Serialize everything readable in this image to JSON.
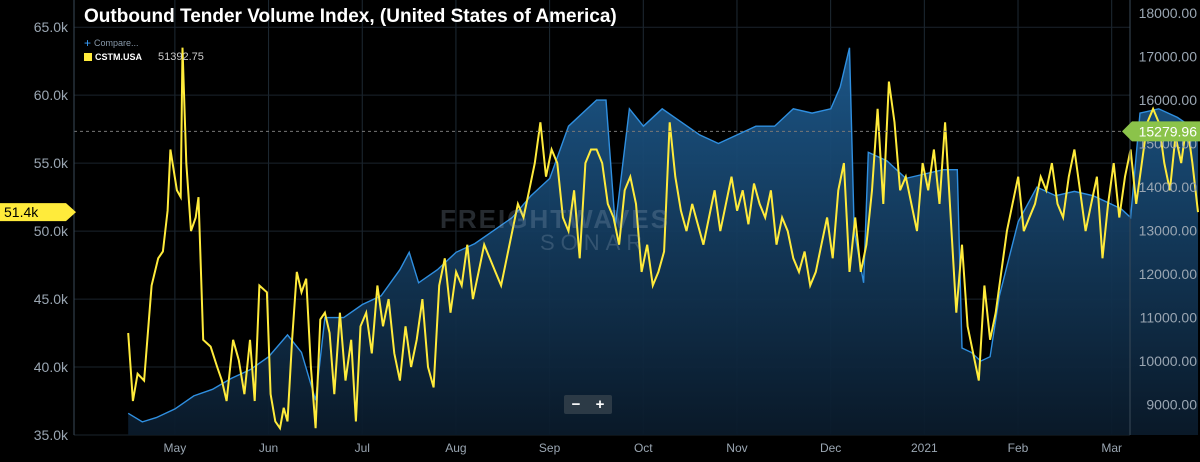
{
  "title": "Outbound Tender Volume Index, (United States of America)",
  "legend": {
    "compare_label": "Compare...",
    "series_label": "CSTM.USA",
    "series_value": "51392.75"
  },
  "watermark": {
    "line1": "FREIGHTWAVES",
    "line2": "SONAR"
  },
  "zoom": {
    "minus": "−",
    "plus": "+"
  },
  "colors": {
    "yellow": "#ffeb3b",
    "blue": "#2f8fe0",
    "badge_green": "#8bc34a"
  },
  "chart_data": {
    "type": "line",
    "x_ticks": [
      "May",
      "Jun",
      "Jul",
      "Aug",
      "Sep",
      "Oct",
      "Nov",
      "Dec",
      "2021",
      "Feb",
      "Mar"
    ],
    "left_axis": {
      "ylim": [
        35000,
        67000
      ],
      "ticks": [
        35000,
        40000,
        45000,
        50000,
        55000,
        60000,
        65000
      ],
      "tick_labels": [
        "35.0k",
        "40.0k",
        "45.0k",
        "50.0k",
        "55.0k",
        "60.0k",
        "65.0k"
      ]
    },
    "right_axis": {
      "ylim": [
        8300,
        18300
      ],
      "ticks": [
        9000,
        10000,
        11000,
        12000,
        13000,
        14000,
        15000,
        16000,
        17000,
        18000
      ],
      "tick_labels": [
        "9000.00",
        "10000.00",
        "11000.00",
        "12000.00",
        "13000.00",
        "14000.00",
        "15000.00",
        "16000.00",
        "17000.00",
        "18000.00"
      ]
    },
    "last_left_label": "51.4k",
    "last_right_label": "15279.96",
    "series": [
      {
        "name": "CSTM.USA",
        "axis": "left",
        "color": "#ffeb3b",
        "points": [
          [
            0.0,
            42.5
          ],
          [
            0.05,
            37.5
          ],
          [
            0.1,
            39.5
          ],
          [
            0.17,
            39
          ],
          [
            0.25,
            46
          ],
          [
            0.32,
            48
          ],
          [
            0.37,
            48.5
          ],
          [
            0.42,
            51.5
          ],
          [
            0.45,
            56
          ],
          [
            0.52,
            53
          ],
          [
            0.56,
            52.5
          ],
          [
            0.58,
            63.5
          ],
          [
            0.62,
            55
          ],
          [
            0.67,
            50
          ],
          [
            0.72,
            51
          ],
          [
            0.75,
            52.5
          ],
          [
            0.8,
            42
          ],
          [
            0.88,
            41.5
          ],
          [
            0.95,
            40
          ],
          [
            1.0,
            39
          ],
          [
            1.05,
            37.5
          ],
          [
            1.12,
            42
          ],
          [
            1.18,
            40.5
          ],
          [
            1.24,
            38
          ],
          [
            1.3,
            42
          ],
          [
            1.35,
            37.5
          ],
          [
            1.4,
            46
          ],
          [
            1.48,
            45.5
          ],
          [
            1.52,
            38
          ],
          [
            1.57,
            36
          ],
          [
            1.62,
            35.5
          ],
          [
            1.66,
            37
          ],
          [
            1.7,
            36
          ],
          [
            1.75,
            42
          ],
          [
            1.8,
            47
          ],
          [
            1.85,
            45.5
          ],
          [
            1.9,
            46.5
          ],
          [
            1.95,
            40
          ],
          [
            2.0,
            35.5
          ],
          [
            2.05,
            43.5
          ],
          [
            2.1,
            44
          ],
          [
            2.15,
            42.5
          ],
          [
            2.2,
            38
          ],
          [
            2.26,
            44
          ],
          [
            2.32,
            39
          ],
          [
            2.38,
            42
          ],
          [
            2.43,
            36
          ],
          [
            2.48,
            43
          ],
          [
            2.54,
            44
          ],
          [
            2.6,
            41
          ],
          [
            2.66,
            46
          ],
          [
            2.72,
            43
          ],
          [
            2.78,
            45
          ],
          [
            2.84,
            41
          ],
          [
            2.9,
            39
          ],
          [
            2.96,
            43
          ],
          [
            3.02,
            40
          ],
          [
            3.08,
            42
          ],
          [
            3.14,
            45
          ],
          [
            3.2,
            40
          ],
          [
            3.26,
            38.5
          ],
          [
            3.32,
            46
          ],
          [
            3.38,
            48
          ],
          [
            3.44,
            44
          ],
          [
            3.5,
            47
          ],
          [
            3.56,
            46
          ],
          [
            3.62,
            49
          ],
          [
            3.68,
            45
          ],
          [
            3.74,
            47
          ],
          [
            3.8,
            49
          ],
          [
            3.86,
            48
          ],
          [
            3.92,
            47
          ],
          [
            3.98,
            46
          ],
          [
            4.04,
            48
          ],
          [
            4.1,
            50
          ],
          [
            4.16,
            52
          ],
          [
            4.22,
            51
          ],
          [
            4.28,
            53
          ],
          [
            4.34,
            55
          ],
          [
            4.4,
            58
          ],
          [
            4.46,
            54
          ],
          [
            4.52,
            56
          ],
          [
            4.58,
            55
          ],
          [
            4.64,
            51
          ],
          [
            4.7,
            50
          ],
          [
            4.76,
            53
          ],
          [
            4.82,
            48
          ],
          [
            4.88,
            55
          ],
          [
            4.94,
            56
          ],
          [
            5.0,
            56
          ],
          [
            5.06,
            55
          ],
          [
            5.12,
            52
          ],
          [
            5.18,
            51
          ],
          [
            5.24,
            49
          ],
          [
            5.3,
            53
          ],
          [
            5.36,
            54
          ],
          [
            5.42,
            52
          ],
          [
            5.48,
            47
          ],
          [
            5.54,
            49
          ],
          [
            5.6,
            46
          ],
          [
            5.66,
            47
          ],
          [
            5.72,
            48.5
          ],
          [
            5.78,
            58
          ],
          [
            5.84,
            54
          ],
          [
            5.9,
            51.5
          ],
          [
            5.96,
            50
          ],
          [
            6.02,
            52
          ],
          [
            6.08,
            50.5
          ],
          [
            6.14,
            49
          ],
          [
            6.2,
            51
          ],
          [
            6.26,
            53
          ],
          [
            6.32,
            50
          ],
          [
            6.38,
            52
          ],
          [
            6.44,
            54
          ],
          [
            6.5,
            51.5
          ],
          [
            6.56,
            53
          ],
          [
            6.62,
            50.5
          ],
          [
            6.68,
            53.5
          ],
          [
            6.74,
            52
          ],
          [
            6.8,
            51
          ],
          [
            6.86,
            53
          ],
          [
            6.92,
            49
          ],
          [
            6.98,
            51
          ],
          [
            7.04,
            50
          ],
          [
            7.1,
            48
          ],
          [
            7.16,
            47
          ],
          [
            7.22,
            48.5
          ],
          [
            7.28,
            46
          ],
          [
            7.34,
            47
          ],
          [
            7.4,
            49
          ],
          [
            7.46,
            51
          ],
          [
            7.52,
            48
          ],
          [
            7.58,
            53
          ],
          [
            7.64,
            55
          ],
          [
            7.7,
            47
          ],
          [
            7.76,
            51
          ],
          [
            7.82,
            47
          ],
          [
            7.88,
            49
          ],
          [
            7.94,
            53
          ],
          [
            8.0,
            59
          ],
          [
            8.06,
            52
          ],
          [
            8.12,
            61
          ],
          [
            8.18,
            58
          ],
          [
            8.24,
            53
          ],
          [
            8.3,
            54
          ],
          [
            8.36,
            52
          ],
          [
            8.42,
            50
          ],
          [
            8.48,
            55
          ],
          [
            8.54,
            53
          ],
          [
            8.6,
            56
          ],
          [
            8.66,
            52
          ],
          [
            8.72,
            58
          ],
          [
            8.78,
            51
          ],
          [
            8.84,
            44
          ],
          [
            8.9,
            49
          ],
          [
            8.96,
            43
          ],
          [
            9.02,
            41
          ],
          [
            9.08,
            39
          ],
          [
            9.14,
            46
          ],
          [
            9.2,
            42
          ],
          [
            9.26,
            44
          ],
          [
            9.32,
            47
          ],
          [
            9.38,
            50
          ],
          [
            9.44,
            52
          ],
          [
            9.5,
            54
          ],
          [
            9.56,
            50
          ],
          [
            9.62,
            51
          ],
          [
            9.68,
            52
          ],
          [
            9.74,
            54
          ],
          [
            9.8,
            53
          ],
          [
            9.86,
            55
          ],
          [
            9.92,
            52
          ],
          [
            9.98,
            51
          ],
          [
            10.04,
            54
          ],
          [
            10.1,
            56
          ],
          [
            10.16,
            53
          ],
          [
            10.22,
            50
          ],
          [
            10.28,
            52
          ],
          [
            10.34,
            54
          ],
          [
            10.4,
            48
          ],
          [
            10.46,
            52
          ],
          [
            10.52,
            55
          ],
          [
            10.58,
            51
          ],
          [
            10.64,
            54
          ],
          [
            10.7,
            56
          ],
          [
            10.76,
            52
          ],
          [
            10.82,
            55
          ],
          [
            10.88,
            58
          ],
          [
            10.94,
            59
          ],
          [
            11.0,
            58
          ],
          [
            11.06,
            55
          ],
          [
            11.12,
            53
          ],
          [
            11.18,
            57
          ],
          [
            11.24,
            55
          ],
          [
            11.3,
            58
          ],
          [
            11.36,
            55
          ],
          [
            11.42,
            51.4
          ]
        ]
      },
      {
        "name": "Compare",
        "axis": "right",
        "color": "#2f8fe0",
        "points": [
          [
            0.0,
            8800
          ],
          [
            0.15,
            8600
          ],
          [
            0.3,
            8700
          ],
          [
            0.5,
            8900
          ],
          [
            0.7,
            9200
          ],
          [
            0.9,
            9350
          ],
          [
            1.1,
            9600
          ],
          [
            1.3,
            9800
          ],
          [
            1.5,
            10100
          ],
          [
            1.7,
            10600
          ],
          [
            1.85,
            10200
          ],
          [
            2.0,
            9100
          ],
          [
            2.1,
            11000
          ],
          [
            2.3,
            11000
          ],
          [
            2.5,
            11300
          ],
          [
            2.7,
            11500
          ],
          [
            2.9,
            12100
          ],
          [
            3.0,
            12500
          ],
          [
            3.1,
            11800
          ],
          [
            3.3,
            12100
          ],
          [
            3.5,
            12500
          ],
          [
            3.7,
            12700
          ],
          [
            3.9,
            13000
          ],
          [
            4.1,
            13300
          ],
          [
            4.3,
            13800
          ],
          [
            4.5,
            14200
          ],
          [
            4.7,
            15400
          ],
          [
            4.9,
            15800
          ],
          [
            5.0,
            16000
          ],
          [
            5.1,
            16000
          ],
          [
            5.2,
            13100
          ],
          [
            5.35,
            15800
          ],
          [
            5.5,
            15400
          ],
          [
            5.7,
            15800
          ],
          [
            5.9,
            15500
          ],
          [
            6.1,
            15200
          ],
          [
            6.3,
            15000
          ],
          [
            6.5,
            15200
          ],
          [
            6.7,
            15400
          ],
          [
            6.9,
            15400
          ],
          [
            7.1,
            15800
          ],
          [
            7.3,
            15700
          ],
          [
            7.5,
            15800
          ],
          [
            7.6,
            16300
          ],
          [
            7.7,
            17200
          ],
          [
            7.75,
            13000
          ],
          [
            7.85,
            11800
          ],
          [
            7.9,
            14800
          ],
          [
            8.1,
            14600
          ],
          [
            8.3,
            14200
          ],
          [
            8.5,
            14300
          ],
          [
            8.7,
            14400
          ],
          [
            8.85,
            14400
          ],
          [
            8.9,
            10300
          ],
          [
            9.0,
            10200
          ],
          [
            9.1,
            10000
          ],
          [
            9.2,
            10100
          ],
          [
            9.3,
            11500
          ],
          [
            9.5,
            13200
          ],
          [
            9.7,
            14000
          ],
          [
            9.9,
            13800
          ],
          [
            10.1,
            13900
          ],
          [
            10.3,
            13800
          ],
          [
            10.5,
            13600
          ],
          [
            10.6,
            13500
          ],
          [
            10.7,
            13300
          ],
          [
            10.8,
            15700
          ],
          [
            11.0,
            15800
          ],
          [
            11.2,
            15600
          ],
          [
            11.42,
            15280
          ]
        ]
      }
    ],
    "grid": true
  }
}
